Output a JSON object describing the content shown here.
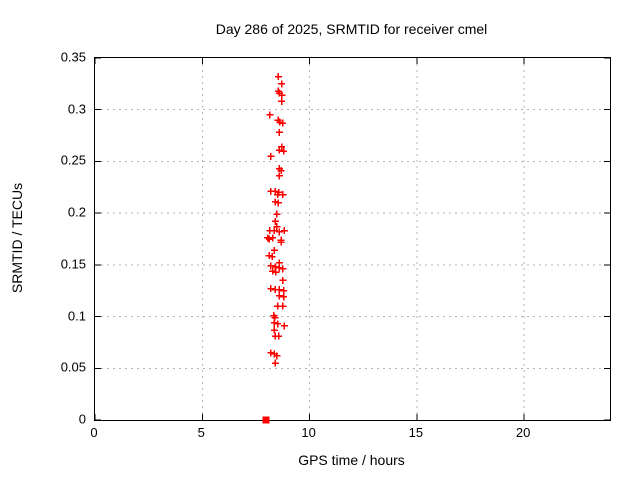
{
  "chart_data": {
    "type": "scatter",
    "title": "Day 286 of 2025, SRMTID for receiver cmel",
    "xlabel": "GPS time / hours",
    "ylabel": "SRMTID / TECUs",
    "xlim": [
      0,
      24
    ],
    "ylim": [
      0,
      0.35
    ],
    "xtick_values": [
      0,
      5,
      10,
      15,
      20
    ],
    "xtick_labels": [
      "0",
      "5",
      "10",
      "15",
      "20"
    ],
    "ytick_values": [
      0,
      0.05,
      0.1,
      0.15,
      0.2,
      0.25,
      0.3,
      0.35
    ],
    "ytick_labels": [
      "0",
      "0.05",
      "0.1",
      "0.15",
      "0.2",
      "0.25",
      "0.3",
      "0.35"
    ],
    "grid": true,
    "legend_position": "none",
    "colors": {
      "marker": "#ff0000",
      "border": "#000000",
      "grid": "#b3b3b3",
      "background": "#ffffff",
      "text": "#000000"
    },
    "series": [
      {
        "name": "SRMTID values",
        "marker": "plus",
        "points": [
          [
            8.54,
            0.332
          ],
          [
            8.7,
            0.325
          ],
          [
            8.55,
            0.318
          ],
          [
            8.59,
            0.316
          ],
          [
            8.71,
            0.314
          ],
          [
            8.7,
            0.308
          ],
          [
            8.15,
            0.295
          ],
          [
            8.53,
            0.29
          ],
          [
            8.62,
            0.288
          ],
          [
            8.74,
            0.287
          ],
          [
            8.59,
            0.278
          ],
          [
            8.7,
            0.264
          ],
          [
            8.59,
            0.261
          ],
          [
            8.79,
            0.26
          ],
          [
            8.2,
            0.255
          ],
          [
            8.59,
            0.243
          ],
          [
            8.67,
            0.241
          ],
          [
            8.59,
            0.236
          ],
          [
            8.2,
            0.221
          ],
          [
            8.39,
            0.221
          ],
          [
            8.56,
            0.22
          ],
          [
            8.51,
            0.218
          ],
          [
            8.75,
            0.218
          ],
          [
            8.4,
            0.211
          ],
          [
            8.54,
            0.21
          ],
          [
            8.47,
            0.199
          ],
          [
            8.4,
            0.192
          ],
          [
            8.47,
            0.187
          ],
          [
            8.15,
            0.183
          ],
          [
            8.36,
            0.183
          ],
          [
            8.59,
            0.182
          ],
          [
            8.82,
            0.183
          ],
          [
            8.05,
            0.176
          ],
          [
            8.13,
            0.175
          ],
          [
            8.28,
            0.176
          ],
          [
            8.67,
            0.174
          ],
          [
            8.67,
            0.172
          ],
          [
            8.36,
            0.164
          ],
          [
            8.12,
            0.159
          ],
          [
            8.25,
            0.158
          ],
          [
            8.59,
            0.152
          ],
          [
            8.2,
            0.149
          ],
          [
            8.4,
            0.148
          ],
          [
            8.59,
            0.147
          ],
          [
            8.28,
            0.144
          ],
          [
            8.43,
            0.143
          ],
          [
            8.75,
            0.146
          ],
          [
            8.75,
            0.135
          ],
          [
            8.2,
            0.127
          ],
          [
            8.4,
            0.126
          ],
          [
            8.59,
            0.126
          ],
          [
            8.79,
            0.125
          ],
          [
            8.59,
            0.12
          ],
          [
            8.79,
            0.119
          ],
          [
            8.51,
            0.11
          ],
          [
            8.75,
            0.11
          ],
          [
            8.34,
            0.101
          ],
          [
            8.38,
            0.099
          ],
          [
            8.36,
            0.094
          ],
          [
            8.51,
            0.093
          ],
          [
            8.82,
            0.091
          ],
          [
            8.36,
            0.087
          ],
          [
            8.4,
            0.081
          ],
          [
            8.56,
            0.081
          ],
          [
            8.2,
            0.065
          ],
          [
            8.36,
            0.064
          ],
          [
            8.47,
            0.062
          ],
          [
            8.4,
            0.055
          ]
        ]
      },
      {
        "name": "zero marker",
        "marker": "filled-square",
        "points": [
          [
            7.97,
            0.0
          ]
        ]
      }
    ]
  }
}
